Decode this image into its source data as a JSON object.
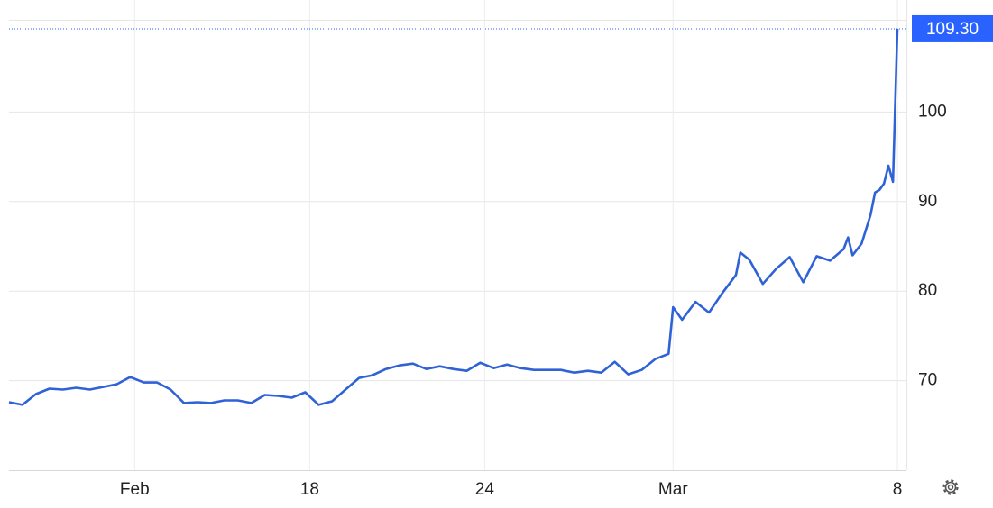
{
  "chart_data": {
    "type": "line",
    "x": [
      0,
      3,
      6,
      9,
      12,
      15,
      18,
      21,
      24,
      27,
      30,
      33,
      36,
      39,
      42,
      45,
      48,
      51,
      54,
      57,
      60,
      63,
      66,
      69,
      72,
      75,
      78,
      81,
      84,
      87,
      90,
      93,
      96,
      99,
      102,
      105,
      108,
      111,
      114,
      117,
      120,
      123,
      126,
      129,
      132,
      135,
      138,
      141,
      144,
      147,
      148,
      150,
      153,
      156,
      159,
      162,
      163,
      165,
      168,
      171,
      174,
      177,
      180,
      183,
      186,
      187,
      188,
      190,
      192,
      193,
      194,
      195,
      196,
      197,
      198
    ],
    "series": [
      {
        "color": "#2f62d6",
        "values": [
          67.6,
          67.3,
          68.5,
          69.1,
          69.0,
          69.2,
          69.0,
          69.3,
          69.6,
          70.4,
          69.8,
          69.8,
          69.0,
          67.5,
          67.6,
          67.5,
          67.8,
          67.8,
          67.5,
          68.4,
          68.3,
          68.1,
          68.7,
          67.3,
          67.7,
          69.0,
          70.3,
          70.6,
          71.3,
          71.7,
          71.9,
          71.3,
          71.6,
          71.3,
          71.1,
          72.0,
          71.4,
          71.8,
          71.4,
          71.2,
          71.2,
          71.2,
          70.9,
          71.1,
          70.9,
          72.1,
          70.7,
          71.2,
          72.4,
          73.0,
          78.2,
          76.8,
          78.8,
          77.6,
          79.8,
          81.8,
          84.3,
          83.5,
          80.8,
          82.5,
          83.8,
          81.0,
          83.9,
          83.4,
          84.7,
          86.0,
          84.0,
          85.3,
          88.5,
          91.0,
          91.3,
          92.0,
          94.0,
          92.2,
          109.3
        ]
      }
    ],
    "xlim": [
      0,
      200
    ],
    "xticks": [
      {
        "value": 28,
        "label": "Feb"
      },
      {
        "value": 67,
        "label": "18"
      },
      {
        "value": 106,
        "label": "24"
      },
      {
        "value": 148,
        "label": "Mar"
      },
      {
        "value": 198,
        "label": "8"
      }
    ],
    "ylim": [
      60,
      110.3
    ],
    "yticks": [
      70,
      80,
      90,
      100
    ],
    "annotations": [
      {
        "value": 109.3,
        "label": "109.30",
        "color": "#2962ff"
      }
    ],
    "grid": true
  }
}
